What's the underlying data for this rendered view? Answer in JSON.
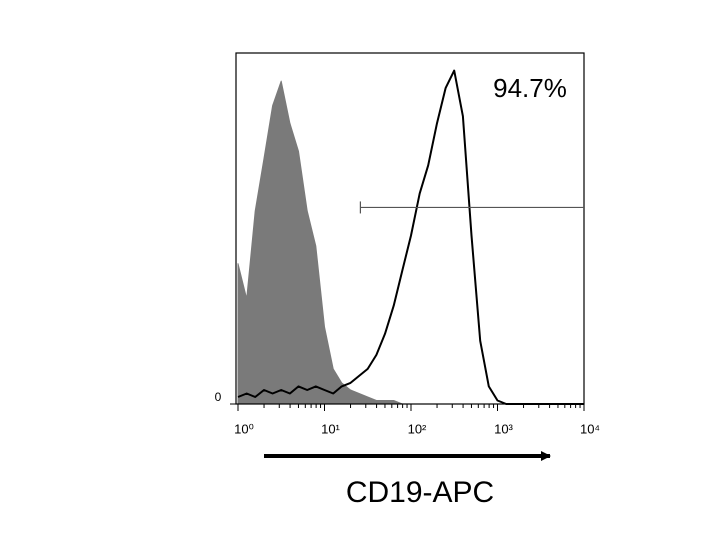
{
  "chart_data": {
    "type": "histogram",
    "x_label": "CD19-APC",
    "gate": {
      "range": [
        26,
        10000
      ],
      "level": 56,
      "label": "94.7%"
    },
    "x": [
      1,
      1.26,
      1.58,
      2,
      2.51,
      3.16,
      3.98,
      5.01,
      6.31,
      7.94,
      10,
      12.6,
      15.8,
      20,
      25.1,
      31.6,
      39.8,
      50.1,
      63.1,
      79.4,
      100,
      126,
      158,
      200,
      251,
      316,
      398,
      501,
      631,
      794,
      1000,
      1260,
      1580,
      2000,
      2510,
      3160,
      3980,
      5010,
      6310,
      7940,
      10000
    ],
    "series": [
      {
        "color": "#7a7a7a",
        "fill": true,
        "values": [
          40,
          30,
          55,
          70,
          85,
          92,
          80,
          72,
          55,
          45,
          22,
          10,
          6,
          4,
          3,
          2,
          1,
          1,
          1,
          0,
          0,
          0,
          0,
          0,
          0,
          0,
          0,
          0,
          0,
          0,
          0,
          0,
          0,
          0,
          0,
          0,
          0,
          0,
          0,
          0,
          0
        ]
      },
      {
        "color": "#000000",
        "fill": false,
        "values": [
          2,
          3,
          2,
          4,
          3,
          4,
          3,
          5,
          4,
          5,
          4,
          3,
          5,
          6,
          8,
          10,
          14,
          20,
          28,
          38,
          48,
          60,
          68,
          80,
          90,
          95,
          82,
          48,
          18,
          5,
          1,
          0,
          0,
          0,
          0,
          0,
          0,
          0,
          0,
          0,
          0
        ]
      }
    ],
    "x_log": true,
    "xlim": [
      1,
      10000
    ],
    "xticks": [
      {
        "value": 1,
        "label": "10⁰"
      },
      {
        "value": 10,
        "label": "10¹"
      },
      {
        "value": 100,
        "label": "10²"
      },
      {
        "value": 1000,
        "label": "10³"
      },
      {
        "value": 10000,
        "label": "10⁴"
      }
    ],
    "ylim": [
      0,
      100
    ],
    "yticks": [
      0
    ]
  }
}
